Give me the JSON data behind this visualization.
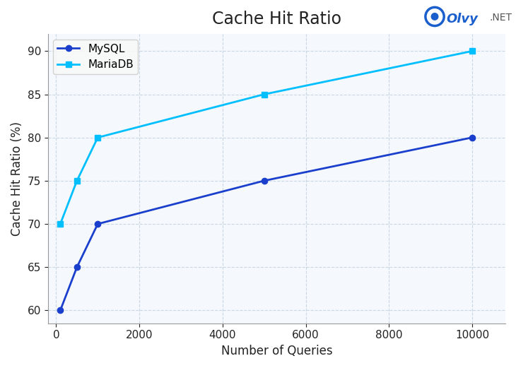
{
  "title": "Cache Hit Ratio",
  "xlabel": "Number of Queries",
  "ylabel": "Cache Hit Ratio (%)",
  "mysql": {
    "x": [
      100,
      500,
      1000,
      5000,
      10000
    ],
    "y": [
      60,
      65,
      70,
      75,
      80
    ],
    "color": "#1a3fcc",
    "marker": "o",
    "label": "MySQL",
    "linewidth": 2.0,
    "markersize": 6
  },
  "mariadb": {
    "x": [
      100,
      500,
      1000,
      5000,
      10000
    ],
    "y": [
      70,
      75,
      80,
      85,
      90
    ],
    "color": "#00bfff",
    "marker": "s",
    "label": "MariaDB",
    "linewidth": 2.0,
    "markersize": 6
  },
  "xlim": [
    -200,
    10800
  ],
  "ylim": [
    58.5,
    92
  ],
  "xticks": [
    0,
    2000,
    4000,
    6000,
    8000,
    10000
  ],
  "yticks": [
    60,
    65,
    70,
    75,
    80,
    85,
    90
  ],
  "grid_color": "#c0d0e0",
  "grid_linestyle": "--",
  "grid_alpha": 0.8,
  "background_color": "#ffffff",
  "plot_bg_color": "#f5f8fc",
  "title_fontsize": 17,
  "label_fontsize": 12,
  "tick_fontsize": 11,
  "legend_fontsize": 11,
  "logo_olvy_color": "#1a5fcc",
  "logo_net_color": "#555555",
  "logo_circle_color": "#1a5fcc"
}
